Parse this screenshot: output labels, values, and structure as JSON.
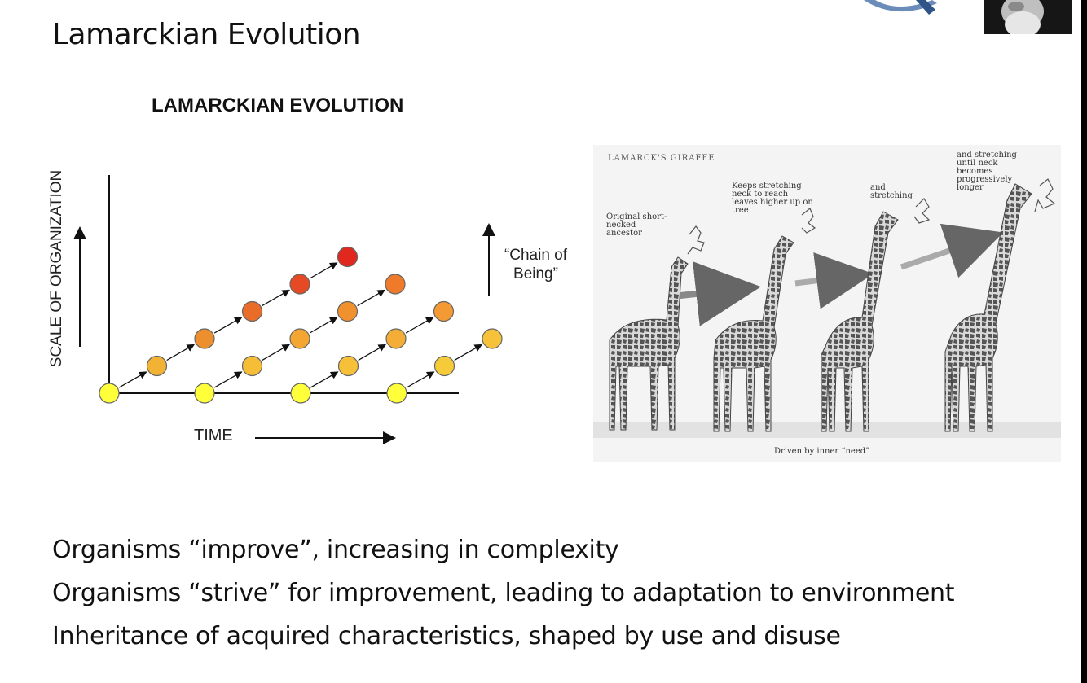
{
  "slide": {
    "title": "Lamarckian Evolution"
  },
  "diagram": {
    "title": "LAMARCKIAN  EVOLUTION",
    "y_axis_label": "SCALE OF ORGANIZATION",
    "x_axis_label": "TIME",
    "chain_label": "“Chain of Being”",
    "lineages": [
      {
        "nodes": 6,
        "top_color": "#e0281e"
      },
      {
        "nodes": 5,
        "top_color": "#ef7a2a"
      },
      {
        "nodes": 4,
        "top_color": "#f39a35"
      },
      {
        "nodes": 3,
        "top_color": "#f5c23a"
      }
    ]
  },
  "giraffe_illustration": {
    "title": "LAMARCK'S GIRAFFE",
    "caption_1": "Original short-necked ancestor",
    "caption_2": "Keeps stretching neck to reach leaves higher up on tree",
    "caption_3": "and stretching",
    "caption_4": "and stretching until neck becomes progressively longer",
    "footer": "Driven by inner “need”"
  },
  "bullets": [
    "Organisms “improve”, increasing in complexity",
    "Organisms “strive” for improvement, leading to adaptation to environment",
    "Inheritance of acquired characteristics, shaped by use and disuse"
  ]
}
